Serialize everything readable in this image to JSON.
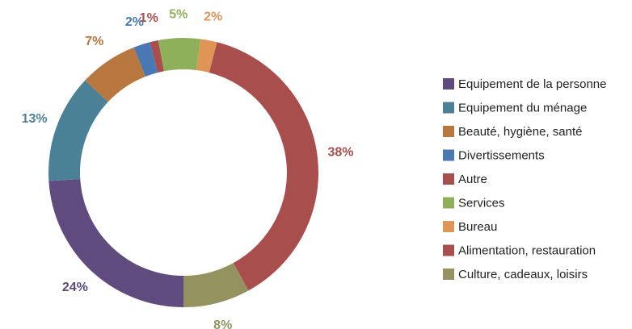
{
  "chart_data": {
    "type": "donut",
    "categories": [
      "Equipement de la personne",
      "Equipement du ménage",
      "Beauté, hygiène, santé",
      "Divertissements",
      "Autre",
      "Services",
      "Bureau",
      "Alimentation, restauration",
      "Culture, cadeaux, loisirs"
    ],
    "values": [
      24,
      13,
      7,
      2,
      1,
      5,
      2,
      38,
      8
    ],
    "value_labels": [
      "24%",
      "13%",
      "7%",
      "2%",
      "1%",
      "5%",
      "2%",
      "38%",
      "8%"
    ],
    "colors": [
      "#5f4b7d",
      "#4b8196",
      "#b8773f",
      "#4a78b4",
      "#a84e4c",
      "#8fb05a",
      "#de9556",
      "#a84e4c",
      "#94935f"
    ],
    "legend": "right"
  }
}
